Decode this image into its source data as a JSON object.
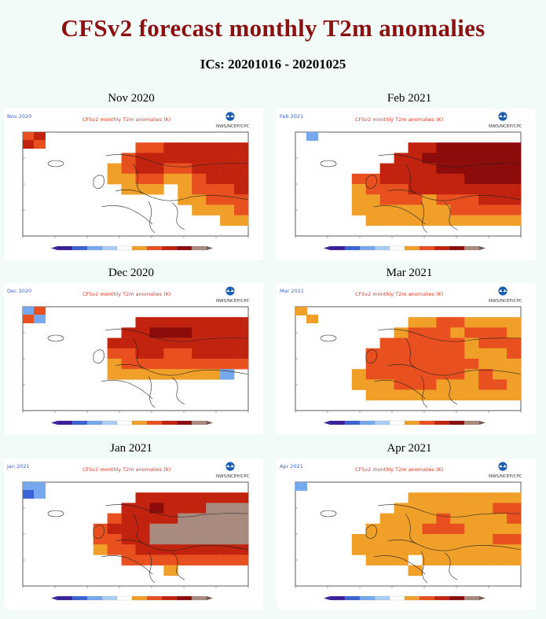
{
  "title": "CFSv2 forecast monthly T2m anomalies",
  "subtitle": "ICs: 20201016 - 20201025",
  "header_text": "CFSv2 monthly T2m anomalies (K)",
  "agency_text": "NWS/NCEP/CPC",
  "palette": {
    "cold3": "#3a1f9a",
    "cold2": "#3b63d6",
    "cold1": "#76a8ee",
    "cold0": "#a9cdf5",
    "neutral": "#ffffff",
    "warm1": "#f0a029",
    "warm2": "#e8501f",
    "warm3": "#c2230e",
    "warm4": "#8c0b0b",
    "warm5": "#a98a7e"
  },
  "panels": [
    {
      "id": "nov",
      "label": "Nov 2020",
      "inset": "Nov 2020",
      "col": 0,
      "row": 0,
      "anomaly": [
        [
          0,
          0,
          0,
          0,
          0,
          0,
          0,
          0,
          0,
          0,
          0,
          0,
          0,
          0,
          0,
          0
        ],
        [
          0,
          0,
          0,
          0,
          0,
          0,
          0,
          0,
          2,
          2,
          3,
          3,
          3,
          3,
          3,
          3
        ],
        [
          0,
          0,
          0,
          0,
          0,
          0,
          0,
          2,
          3,
          3,
          3,
          3,
          3,
          3,
          3,
          3
        ],
        [
          0,
          0,
          0,
          0,
          0,
          0,
          1,
          2,
          3,
          3,
          2,
          2,
          3,
          3,
          3,
          3
        ],
        [
          0,
          0,
          0,
          0,
          0,
          0,
          1,
          1,
          2,
          2,
          1,
          1,
          2,
          3,
          3,
          3
        ],
        [
          0,
          0,
          0,
          0,
          0,
          0,
          0,
          1,
          1,
          1,
          0,
          1,
          2,
          2,
          2,
          3
        ],
        [
          0,
          0,
          0,
          0,
          0,
          0,
          0,
          0,
          0,
          0,
          0,
          1,
          1,
          2,
          2,
          2
        ],
        [
          0,
          0,
          0,
          0,
          0,
          0,
          0,
          0,
          0,
          0,
          0,
          0,
          1,
          1,
          1,
          2
        ],
        [
          0,
          0,
          0,
          0,
          0,
          0,
          0,
          0,
          0,
          0,
          0,
          0,
          0,
          0,
          1,
          1
        ],
        [
          0,
          0,
          0,
          0,
          0,
          0,
          0,
          0,
          0,
          0,
          0,
          0,
          0,
          0,
          0,
          0
        ]
      ],
      "greenland": [
        2,
        3,
        3,
        2
      ]
    },
    {
      "id": "feb",
      "label": "Feb 2021",
      "inset": "Feb 2021",
      "col": 1,
      "row": 0,
      "anomaly": [
        [
          0,
          0,
          0,
          0,
          0,
          0,
          0,
          0,
          0,
          0,
          0,
          0,
          0,
          0,
          0,
          0
        ],
        [
          0,
          0,
          0,
          0,
          0,
          0,
          0,
          0,
          3,
          3,
          4,
          4,
          4,
          4,
          4,
          4
        ],
        [
          0,
          0,
          0,
          0,
          0,
          0,
          0,
          3,
          3,
          4,
          4,
          4,
          4,
          4,
          4,
          4
        ],
        [
          0,
          0,
          0,
          0,
          0,
          0,
          3,
          3,
          3,
          3,
          4,
          4,
          4,
          4,
          4,
          4
        ],
        [
          0,
          0,
          0,
          0,
          2,
          2,
          3,
          3,
          3,
          3,
          3,
          3,
          4,
          4,
          4,
          4
        ],
        [
          0,
          0,
          0,
          0,
          1,
          2,
          2,
          2,
          3,
          3,
          3,
          3,
          3,
          3,
          3,
          3
        ],
        [
          0,
          0,
          0,
          0,
          1,
          1,
          2,
          2,
          2,
          1,
          2,
          2,
          2,
          3,
          3,
          3
        ],
        [
          0,
          0,
          0,
          0,
          1,
          1,
          1,
          1,
          1,
          1,
          1,
          2,
          2,
          2,
          2,
          2
        ],
        [
          0,
          0,
          0,
          0,
          0,
          1,
          1,
          1,
          1,
          1,
          1,
          1,
          1,
          1,
          1,
          1
        ],
        [
          0,
          0,
          0,
          0,
          0,
          0,
          0,
          0,
          0,
          0,
          0,
          0,
          0,
          0,
          0,
          0
        ]
      ],
      "greenland": [
        0,
        -1,
        0,
        0
      ]
    },
    {
      "id": "dec",
      "label": "Dec 2020",
      "inset": "Dec 2020",
      "col": 0,
      "row": 1,
      "anomaly": [
        [
          0,
          0,
          0,
          0,
          0,
          0,
          0,
          0,
          0,
          0,
          0,
          0,
          0,
          0,
          0,
          0
        ],
        [
          0,
          0,
          0,
          0,
          0,
          0,
          0,
          0,
          3,
          3,
          3,
          3,
          3,
          3,
          3,
          3
        ],
        [
          0,
          0,
          0,
          0,
          0,
          0,
          0,
          3,
          3,
          4,
          4,
          4,
          3,
          3,
          3,
          3
        ],
        [
          0,
          0,
          0,
          0,
          0,
          0,
          3,
          3,
          3,
          3,
          3,
          3,
          3,
          3,
          3,
          3
        ],
        [
          0,
          0,
          0,
          0,
          0,
          0,
          2,
          2,
          3,
          3,
          2,
          2,
          3,
          3,
          3,
          3
        ],
        [
          0,
          0,
          0,
          0,
          0,
          0,
          1,
          2,
          2,
          2,
          2,
          2,
          2,
          2,
          2,
          2
        ],
        [
          0,
          0,
          0,
          0,
          0,
          0,
          1,
          1,
          1,
          1,
          1,
          1,
          1,
          1,
          -1,
          0
        ],
        [
          0,
          0,
          0,
          0,
          0,
          0,
          0,
          0,
          0,
          0,
          0,
          0,
          0,
          0,
          0,
          0
        ],
        [
          0,
          0,
          0,
          0,
          0,
          0,
          0,
          0,
          0,
          0,
          0,
          0,
          0,
          0,
          0,
          0
        ],
        [
          0,
          0,
          0,
          0,
          0,
          0,
          0,
          0,
          0,
          0,
          0,
          0,
          0,
          0,
          0,
          0
        ]
      ],
      "greenland": [
        -1,
        2,
        2,
        -1
      ]
    },
    {
      "id": "mar",
      "label": "Mar 2021",
      "inset": "Mar 2021",
      "col": 1,
      "row": 1,
      "anomaly": [
        [
          0,
          0,
          0,
          0,
          0,
          0,
          0,
          0,
          0,
          0,
          0,
          0,
          0,
          0,
          0,
          0
        ],
        [
          0,
          0,
          0,
          0,
          0,
          0,
          0,
          0,
          1,
          1,
          2,
          2,
          1,
          1,
          1,
          1
        ],
        [
          0,
          0,
          0,
          0,
          0,
          0,
          0,
          1,
          2,
          2,
          2,
          1,
          2,
          2,
          2,
          1
        ],
        [
          0,
          0,
          0,
          0,
          0,
          0,
          2,
          2,
          2,
          2,
          2,
          2,
          1,
          2,
          2,
          2
        ],
        [
          0,
          0,
          0,
          0,
          0,
          2,
          2,
          2,
          2,
          2,
          2,
          2,
          1,
          1,
          1,
          2
        ],
        [
          0,
          0,
          0,
          0,
          0,
          2,
          2,
          2,
          2,
          2,
          2,
          2,
          2,
          1,
          1,
          1
        ],
        [
          0,
          0,
          0,
          0,
          1,
          2,
          2,
          2,
          2,
          2,
          2,
          2,
          1,
          2,
          1,
          1
        ],
        [
          0,
          0,
          0,
          0,
          1,
          1,
          1,
          2,
          2,
          2,
          1,
          1,
          1,
          2,
          2,
          1
        ],
        [
          0,
          0,
          0,
          0,
          0,
          1,
          1,
          1,
          1,
          1,
          1,
          1,
          1,
          1,
          1,
          1
        ],
        [
          0,
          0,
          0,
          0,
          0,
          0,
          0,
          0,
          0,
          0,
          0,
          0,
          0,
          0,
          0,
          0
        ]
      ],
      "greenland": [
        1,
        0,
        0,
        1
      ]
    },
    {
      "id": "jan",
      "label": "Jan 2021",
      "inset": "Jan 2021",
      "col": 0,
      "row": 2,
      "anomaly": [
        [
          0,
          0,
          0,
          0,
          0,
          0,
          0,
          0,
          0,
          0,
          0,
          0,
          0,
          0,
          0,
          0
        ],
        [
          0,
          0,
          0,
          0,
          0,
          0,
          0,
          0,
          3,
          3,
          3,
          3,
          3,
          3,
          3,
          3
        ],
        [
          0,
          0,
          0,
          0,
          0,
          0,
          0,
          3,
          3,
          4,
          3,
          3,
          3,
          5,
          5,
          5
        ],
        [
          0,
          0,
          0,
          0,
          0,
          0,
          2,
          3,
          3,
          3,
          3,
          5,
          5,
          5,
          5,
          5
        ],
        [
          0,
          0,
          0,
          0,
          0,
          2,
          3,
          3,
          3,
          5,
          5,
          5,
          5,
          5,
          5,
          5
        ],
        [
          0,
          0,
          0,
          0,
          0,
          2,
          2,
          3,
          3,
          5,
          5,
          5,
          5,
          5,
          5,
          5
        ],
        [
          0,
          0,
          0,
          0,
          0,
          1,
          2,
          2,
          3,
          3,
          3,
          3,
          3,
          3,
          3,
          3
        ],
        [
          0,
          0,
          0,
          0,
          0,
          0,
          0,
          2,
          2,
          2,
          2,
          2,
          2,
          2,
          2,
          2
        ],
        [
          0,
          0,
          0,
          0,
          0,
          0,
          0,
          0,
          0,
          0,
          1,
          0,
          0,
          0,
          0,
          0
        ],
        [
          0,
          0,
          0,
          0,
          0,
          0,
          0,
          0,
          0,
          0,
          0,
          0,
          0,
          0,
          0,
          0
        ]
      ],
      "greenland": [
        -1,
        -1,
        -2,
        -1
      ]
    },
    {
      "id": "apr",
      "label": "Apr 2021",
      "inset": "Apr 2021",
      "col": 1,
      "row": 2,
      "anomaly": [
        [
          0,
          0,
          0,
          0,
          0,
          0,
          0,
          0,
          0,
          0,
          0,
          0,
          0,
          0,
          0,
          0
        ],
        [
          0,
          0,
          0,
          0,
          0,
          0,
          0,
          0,
          1,
          1,
          1,
          1,
          1,
          1,
          1,
          1
        ],
        [
          0,
          0,
          0,
          0,
          0,
          0,
          0,
          1,
          1,
          1,
          1,
          1,
          1,
          1,
          2,
          2
        ],
        [
          0,
          0,
          0,
          0,
          0,
          0,
          1,
          1,
          1,
          1,
          2,
          1,
          1,
          1,
          1,
          2
        ],
        [
          0,
          0,
          0,
          0,
          0,
          1,
          1,
          1,
          1,
          2,
          2,
          2,
          1,
          1,
          1,
          1
        ],
        [
          0,
          0,
          0,
          0,
          1,
          1,
          1,
          1,
          1,
          1,
          1,
          1,
          1,
          1,
          2,
          2
        ],
        [
          0,
          0,
          0,
          0,
          1,
          1,
          1,
          1,
          1,
          1,
          1,
          1,
          1,
          1,
          1,
          1
        ],
        [
          0,
          0,
          0,
          0,
          0,
          1,
          1,
          1,
          0,
          1,
          1,
          1,
          1,
          1,
          1,
          1
        ],
        [
          0,
          0,
          0,
          0,
          0,
          0,
          0,
          0,
          1,
          0,
          0,
          0,
          0,
          0,
          0,
          0
        ],
        [
          0,
          0,
          0,
          0,
          0,
          0,
          0,
          0,
          0,
          0,
          0,
          0,
          0,
          0,
          0,
          0
        ]
      ],
      "greenland": [
        -1,
        0,
        0,
        0
      ]
    }
  ]
}
